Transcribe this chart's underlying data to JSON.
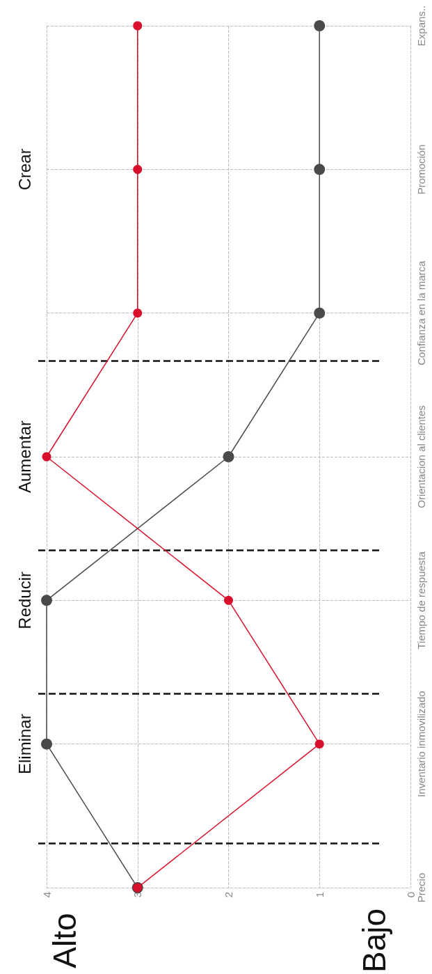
{
  "chart_data": {
    "type": "line",
    "orientation": "horizontal",
    "categories": [
      "Expans..",
      "Promoción",
      "Confianza en la marca",
      "Orientacion al clientes",
      "Tiempo de respuesta",
      "Inventario inmovilizado",
      "Precio"
    ],
    "series": [
      {
        "color": "#d9102b",
        "values": [
          3,
          3,
          3,
          4,
          2,
          1,
          3
        ]
      },
      {
        "color": "#4a4a4a",
        "values": [
          1,
          1,
          1,
          2,
          4,
          4,
          3
        ]
      }
    ],
    "xlim": [
      4,
      0
    ],
    "xticks": [
      0,
      1,
      2,
      3,
      4
    ],
    "grid": true,
    "marker": "circle",
    "line_style": "solid",
    "annotations": [
      "Eliminar",
      "Reducir",
      "Aumentar",
      "Crear",
      "Alto",
      "Bajo"
    ]
  }
}
